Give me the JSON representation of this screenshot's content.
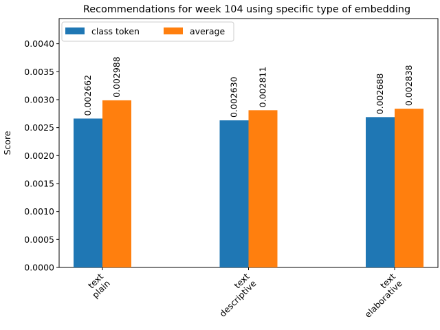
{
  "chart_data": {
    "type": "bar",
    "title": "Recommendations for week 104 using specific type of embedding",
    "xlabel": "",
    "ylabel": "Score",
    "categories": [
      [
        "text",
        "plain"
      ],
      [
        "text",
        "descriptive"
      ],
      [
        "text",
        "elaborative"
      ]
    ],
    "series": [
      {
        "name": "class token",
        "color": "#1f77b4",
        "values": [
          0.002662,
          0.00263,
          0.002688
        ],
        "labels": [
          "0.002662",
          "0.002630",
          "0.002688"
        ]
      },
      {
        "name": "average",
        "color": "#ff7f0e",
        "values": [
          0.002988,
          0.002811,
          0.002838
        ],
        "labels": [
          "0.002988",
          "0.002811",
          "0.002838"
        ]
      }
    ],
    "ylim": [
      0,
      0.00445
    ],
    "yticks": [
      0.0,
      0.0005,
      0.001,
      0.0015,
      0.002,
      0.0025,
      0.003,
      0.0035,
      0.004
    ],
    "ytick_labels": [
      "0.0000",
      "0.0005",
      "0.0010",
      "0.0015",
      "0.0020",
      "0.0025",
      "0.0030",
      "0.0035",
      "0.0040"
    ],
    "legend_position": "top-left",
    "grid": false
  }
}
